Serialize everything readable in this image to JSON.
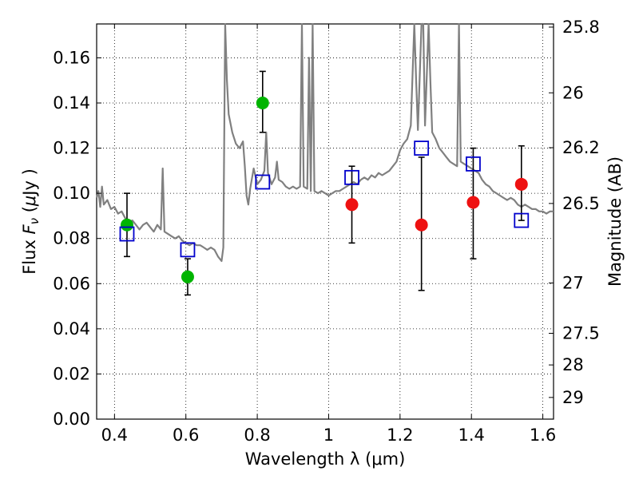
{
  "chart_data": {
    "type": "scatter",
    "xlabel": "Wavelength  λ (μm)",
    "ylabel_left": "Flux  F_ν  ( μJy )",
    "ylabel_left_parts": {
      "prefix": "Flux  ",
      "symbol": "F",
      "sub": "ν",
      "suffix_open": "  (",
      "mu": "μ",
      "unit": "Jy )"
    },
    "ylabel_right": "Magnitude (AB)",
    "xlim": [
      0.35,
      1.63
    ],
    "ylim": [
      0.0,
      0.175
    ],
    "grid": true,
    "x_ticks": [
      {
        "value": 0.4,
        "label": "0.4"
      },
      {
        "value": 0.6,
        "label": "0.6"
      },
      {
        "value": 0.8,
        "label": "0.8"
      },
      {
        "value": 1.0,
        "label": "1"
      },
      {
        "value": 1.2,
        "label": "1.2"
      },
      {
        "value": 1.4,
        "label": "1.4"
      },
      {
        "value": 1.6,
        "label": "1.6"
      }
    ],
    "y_ticks": [
      {
        "value": 0.0,
        "label": "0.00"
      },
      {
        "value": 0.02,
        "label": "0.02"
      },
      {
        "value": 0.04,
        "label": "0.04"
      },
      {
        "value": 0.06,
        "label": "0.06"
      },
      {
        "value": 0.08,
        "label": "0.08"
      },
      {
        "value": 0.1,
        "label": "0.10"
      },
      {
        "value": 0.12,
        "label": "0.12"
      },
      {
        "value": 0.14,
        "label": "0.14"
      },
      {
        "value": 0.16,
        "label": "0.16"
      }
    ],
    "right_ticks": [
      {
        "flux": 0.1736,
        "label": "25.8"
      },
      {
        "flux": 0.1445,
        "label": "26"
      },
      {
        "flux": 0.1202,
        "label": "26.2"
      },
      {
        "flux": 0.0955,
        "label": "26.5"
      },
      {
        "flux": 0.0603,
        "label": "27"
      },
      {
        "flux": 0.038,
        "label": "27.5"
      },
      {
        "flux": 0.024,
        "label": "28"
      },
      {
        "flux": 0.0096,
        "label": "29"
      }
    ],
    "series": [
      {
        "name": "spectrum",
        "kind": "line",
        "color": "#808080",
        "points": [
          [
            0.35,
            0.098
          ],
          [
            0.355,
            0.101
          ],
          [
            0.36,
            0.094
          ],
          [
            0.365,
            0.103
          ],
          [
            0.37,
            0.095
          ],
          [
            0.38,
            0.097
          ],
          [
            0.39,
            0.093
          ],
          [
            0.4,
            0.094
          ],
          [
            0.41,
            0.091
          ],
          [
            0.42,
            0.092
          ],
          [
            0.43,
            0.089
          ],
          [
            0.44,
            0.087
          ],
          [
            0.45,
            0.088
          ],
          [
            0.46,
            0.086
          ],
          [
            0.47,
            0.084
          ],
          [
            0.48,
            0.086
          ],
          [
            0.49,
            0.087
          ],
          [
            0.5,
            0.085
          ],
          [
            0.51,
            0.083
          ],
          [
            0.52,
            0.086
          ],
          [
            0.53,
            0.084
          ],
          [
            0.535,
            0.111
          ],
          [
            0.54,
            0.083
          ],
          [
            0.55,
            0.082
          ],
          [
            0.56,
            0.081
          ],
          [
            0.57,
            0.08
          ],
          [
            0.58,
            0.081
          ],
          [
            0.59,
            0.079
          ],
          [
            0.6,
            0.078
          ],
          [
            0.61,
            0.077
          ],
          [
            0.62,
            0.078
          ],
          [
            0.63,
            0.077
          ],
          [
            0.64,
            0.077
          ],
          [
            0.65,
            0.076
          ],
          [
            0.66,
            0.075
          ],
          [
            0.67,
            0.076
          ],
          [
            0.68,
            0.075
          ],
          [
            0.69,
            0.072
          ],
          [
            0.7,
            0.07
          ],
          [
            0.705,
            0.076
          ],
          [
            0.71,
            0.175
          ],
          [
            0.715,
            0.15
          ],
          [
            0.72,
            0.135
          ],
          [
            0.73,
            0.127
          ],
          [
            0.74,
            0.122
          ],
          [
            0.75,
            0.12
          ],
          [
            0.76,
            0.123
          ],
          [
            0.765,
            0.112
          ],
          [
            0.77,
            0.099
          ],
          [
            0.775,
            0.095
          ],
          [
            0.78,
            0.102
          ],
          [
            0.79,
            0.111
          ],
          [
            0.8,
            0.104
          ],
          [
            0.81,
            0.106
          ],
          [
            0.82,
            0.11
          ],
          [
            0.825,
            0.127
          ],
          [
            0.83,
            0.109
          ],
          [
            0.84,
            0.104
          ],
          [
            0.85,
            0.107
          ],
          [
            0.855,
            0.114
          ],
          [
            0.86,
            0.106
          ],
          [
            0.87,
            0.105
          ],
          [
            0.88,
            0.103
          ],
          [
            0.89,
            0.102
          ],
          [
            0.9,
            0.103
          ],
          [
            0.91,
            0.102
          ],
          [
            0.92,
            0.103
          ],
          [
            0.925,
            0.175
          ],
          [
            0.93,
            0.103
          ],
          [
            0.94,
            0.102
          ],
          [
            0.945,
            0.16
          ],
          [
            0.95,
            0.101
          ],
          [
            0.955,
            0.175
          ],
          [
            0.96,
            0.101
          ],
          [
            0.97,
            0.1
          ],
          [
            0.98,
            0.101
          ],
          [
            0.99,
            0.1
          ],
          [
            1.0,
            0.099
          ],
          [
            1.01,
            0.1
          ],
          [
            1.02,
            0.101
          ],
          [
            1.03,
            0.101
          ],
          [
            1.04,
            0.102
          ],
          [
            1.05,
            0.103
          ],
          [
            1.06,
            0.104
          ],
          [
            1.07,
            0.105
          ],
          [
            1.08,
            0.104
          ],
          [
            1.09,
            0.106
          ],
          [
            1.1,
            0.107
          ],
          [
            1.11,
            0.106
          ],
          [
            1.12,
            0.108
          ],
          [
            1.13,
            0.107
          ],
          [
            1.14,
            0.109
          ],
          [
            1.15,
            0.108
          ],
          [
            1.16,
            0.109
          ],
          [
            1.17,
            0.11
          ],
          [
            1.18,
            0.112
          ],
          [
            1.19,
            0.114
          ],
          [
            1.2,
            0.119
          ],
          [
            1.21,
            0.122
          ],
          [
            1.22,
            0.124
          ],
          [
            1.23,
            0.13
          ],
          [
            1.24,
            0.175
          ],
          [
            1.245,
            0.15
          ],
          [
            1.25,
            0.128
          ],
          [
            1.26,
            0.175
          ],
          [
            1.265,
            0.175
          ],
          [
            1.27,
            0.13
          ],
          [
            1.28,
            0.175
          ],
          [
            1.285,
            0.15
          ],
          [
            1.29,
            0.127
          ],
          [
            1.3,
            0.124
          ],
          [
            1.31,
            0.12
          ],
          [
            1.32,
            0.118
          ],
          [
            1.33,
            0.116
          ],
          [
            1.34,
            0.114
          ],
          [
            1.35,
            0.113
          ],
          [
            1.36,
            0.112
          ],
          [
            1.365,
            0.175
          ],
          [
            1.37,
            0.114
          ],
          [
            1.38,
            0.113
          ],
          [
            1.39,
            0.112
          ],
          [
            1.4,
            0.111
          ],
          [
            1.41,
            0.11
          ],
          [
            1.42,
            0.109
          ],
          [
            1.43,
            0.106
          ],
          [
            1.44,
            0.104
          ],
          [
            1.45,
            0.103
          ],
          [
            1.46,
            0.101
          ],
          [
            1.47,
            0.1
          ],
          [
            1.48,
            0.099
          ],
          [
            1.49,
            0.098
          ],
          [
            1.5,
            0.097
          ],
          [
            1.51,
            0.098
          ],
          [
            1.52,
            0.097
          ],
          [
            1.53,
            0.095
          ],
          [
            1.54,
            0.094
          ],
          [
            1.55,
            0.095
          ],
          [
            1.56,
            0.094
          ],
          [
            1.57,
            0.093
          ],
          [
            1.58,
            0.093
          ],
          [
            1.59,
            0.092
          ],
          [
            1.6,
            0.092
          ],
          [
            1.61,
            0.091
          ],
          [
            1.62,
            0.092
          ],
          [
            1.63,
            0.092
          ]
        ]
      },
      {
        "name": "green points",
        "kind": "circle",
        "color": "#00b400",
        "points": [
          {
            "x": 0.435,
            "y": 0.086,
            "yerr_low": 0.072,
            "yerr_high": 0.1
          },
          {
            "x": 0.605,
            "y": 0.063,
            "yerr_low": 0.055,
            "yerr_high": 0.071
          },
          {
            "x": 0.815,
            "y": 0.14,
            "yerr_low": 0.127,
            "yerr_high": 0.154
          }
        ]
      },
      {
        "name": "red points",
        "kind": "circle",
        "color": "#ee1111",
        "points": [
          {
            "x": 1.065,
            "y": 0.095,
            "yerr_low": 0.078,
            "yerr_high": 0.112
          },
          {
            "x": 1.26,
            "y": 0.086,
            "yerr_low": 0.057,
            "yerr_high": 0.116
          },
          {
            "x": 1.405,
            "y": 0.096,
            "yerr_low": 0.071,
            "yerr_high": 0.12
          },
          {
            "x": 1.54,
            "y": 0.104,
            "yerr_low": 0.088,
            "yerr_high": 0.121
          }
        ]
      },
      {
        "name": "model photometry",
        "kind": "square",
        "color": "#0000cc",
        "points": [
          {
            "x": 0.435,
            "y": 0.082
          },
          {
            "x": 0.605,
            "y": 0.075
          },
          {
            "x": 0.815,
            "y": 0.105
          },
          {
            "x": 1.065,
            "y": 0.107
          },
          {
            "x": 1.26,
            "y": 0.12
          },
          {
            "x": 1.405,
            "y": 0.113
          },
          {
            "x": 1.54,
            "y": 0.088
          }
        ]
      }
    ]
  }
}
